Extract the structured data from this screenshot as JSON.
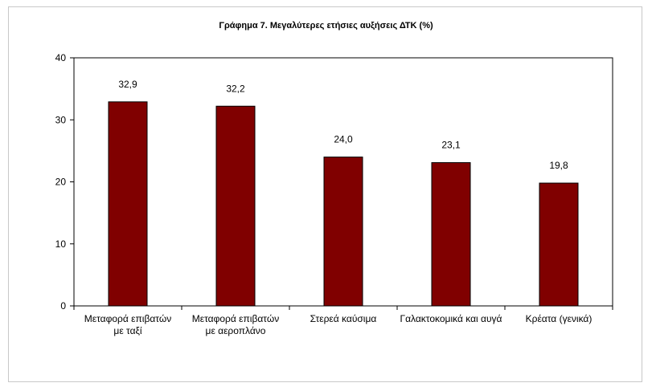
{
  "chart_data": {
    "type": "bar",
    "title": "Γράφημα 7. Μεγαλύτερες ετήσιες αυξήσεις ΔΤΚ (%)",
    "categories": [
      [
        "Μεταφορά επιβατών",
        "με ταξί"
      ],
      [
        "Μεταφορά επιβατών",
        "με αεροπλάνο"
      ],
      [
        "Στερεά καύσιμα"
      ],
      [
        "Γαλακτοκομικά και αυγά"
      ],
      [
        "Κρέατα (γενικά)"
      ]
    ],
    "values": [
      32.9,
      32.2,
      24.0,
      23.1,
      19.8
    ],
    "value_labels": [
      "32,9",
      "32,2",
      "24,0",
      "23,1",
      "19,8"
    ],
    "yticks": [
      0,
      10,
      20,
      30,
      40
    ],
    "ylim": [
      0,
      40
    ],
    "grid": false,
    "legend": false,
    "bar_color": "#800000"
  }
}
